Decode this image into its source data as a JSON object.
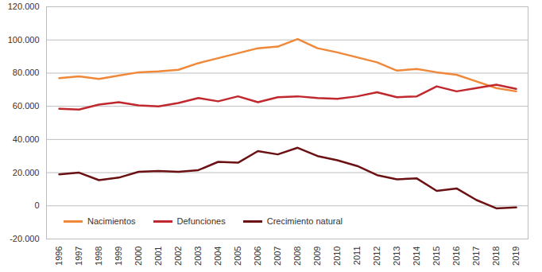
{
  "chart_data": {
    "type": "line",
    "x": [
      "1996",
      "1997",
      "1998",
      "1999",
      "2000",
      "2001",
      "2002",
      "2003",
      "2004",
      "2005",
      "2006",
      "2007",
      "2008",
      "2009",
      "2010",
      "2011",
      "2012",
      "2013",
      "2014",
      "2015",
      "2016",
      "2017",
      "2018",
      "2019"
    ],
    "series": [
      {
        "name": "Nacimientos",
        "color": "#f0883a",
        "values": [
          77000,
          78000,
          76500,
          78500,
          80500,
          81000,
          82000,
          86000,
          89000,
          92000,
          95000,
          96000,
          100500,
          95000,
          92500,
          89500,
          86500,
          81500,
          82500,
          80500,
          79000,
          75000,
          71000,
          69000
        ]
      },
      {
        "name": "Defunciones",
        "color": "#c0282d",
        "values": [
          58500,
          58000,
          61000,
          62500,
          60500,
          60000,
          62000,
          65000,
          63000,
          66000,
          62500,
          65500,
          66000,
          65000,
          64500,
          66000,
          68500,
          65500,
          66000,
          72000,
          69000,
          71000,
          73000,
          70500
        ]
      },
      {
        "name": "Crecimiento natural",
        "color": "#6b1013",
        "values": [
          19000,
          20000,
          15500,
          17000,
          20500,
          21000,
          20500,
          21500,
          26500,
          26000,
          33000,
          31000,
          35000,
          30000,
          27500,
          24000,
          18500,
          16000,
          16500,
          9000,
          10500,
          3500,
          -1500,
          -1000
        ]
      }
    ],
    "ylim": [
      -20000,
      120000
    ],
    "yticks": [
      {
        "value": -20000,
        "label": "-20.000"
      },
      0,
      {
        "value": 20000,
        "label": "20.000"
      },
      {
        "value": 40000,
        "label": "40.000"
      },
      {
        "value": 60000,
        "label": "60.000"
      },
      {
        "value": 80000,
        "label": "80.000"
      },
      {
        "value": 100000,
        "label": "100.000"
      },
      {
        "value": 120000,
        "label": "120.000"
      }
    ],
    "grid": true,
    "legend": "lower left"
  }
}
